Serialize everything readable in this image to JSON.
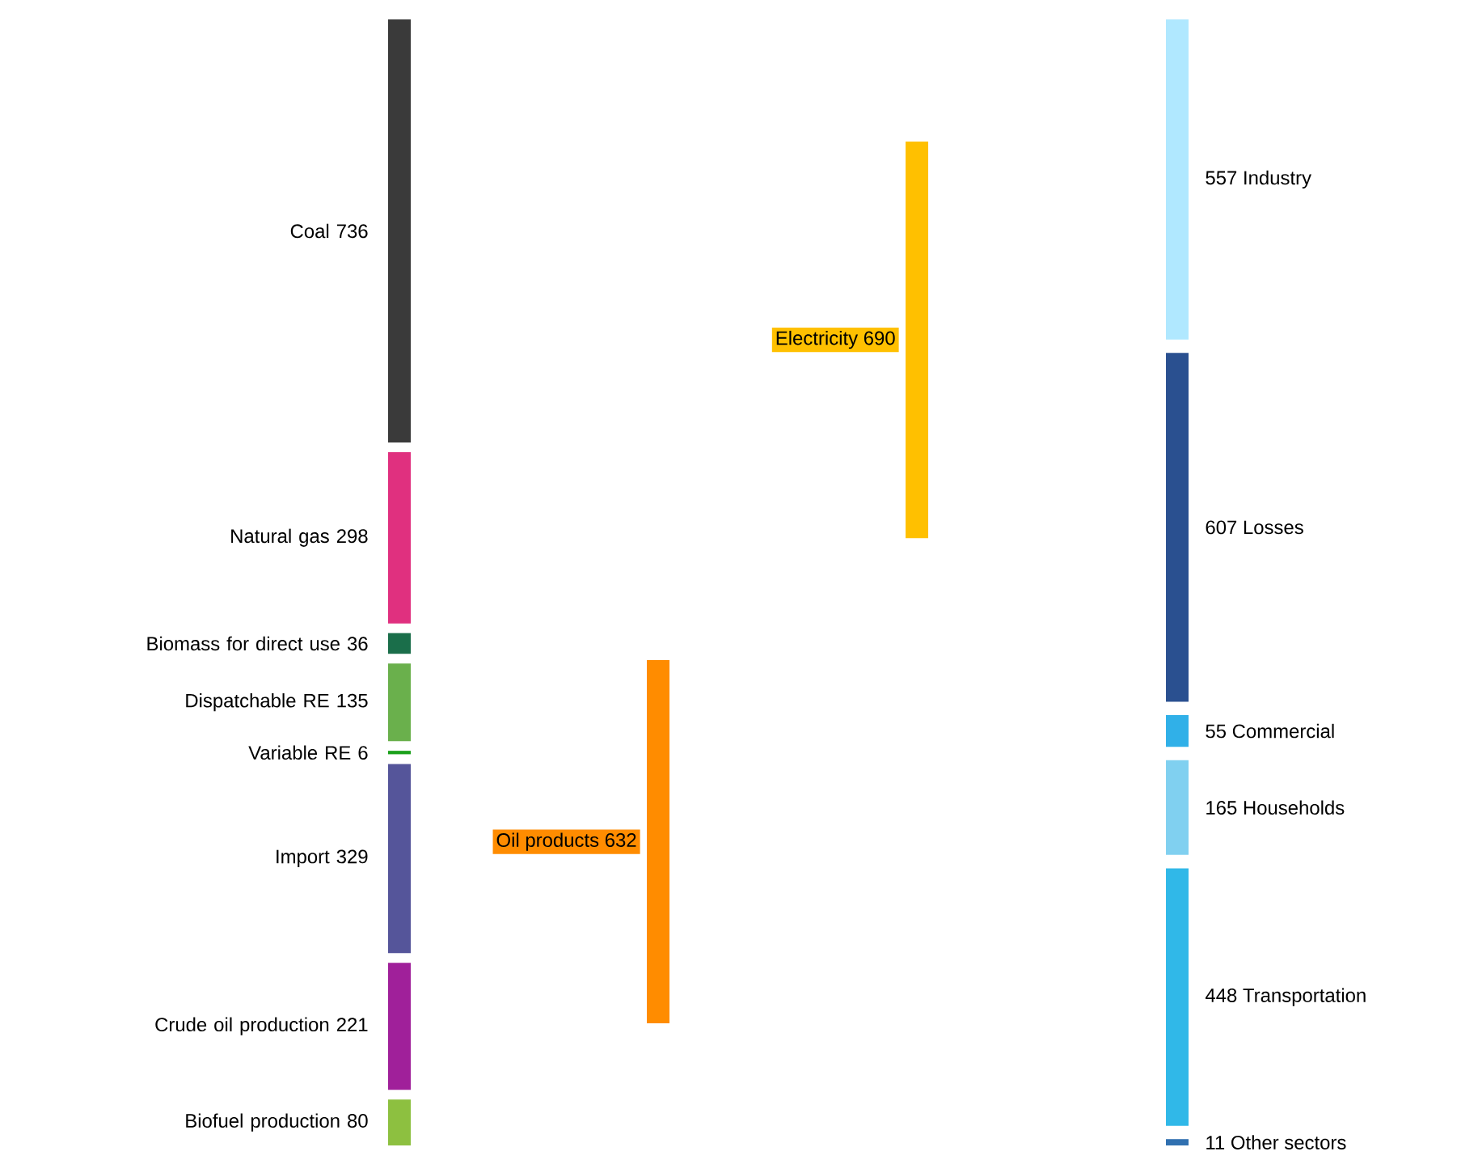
{
  "chart_data": {
    "type": "other",
    "data_labels": true,
    "categories": [
      "Coal",
      "Natural gas",
      "Biomass for direct use",
      "Dispatchable RE",
      "Variable RE",
      "Import",
      "Crude oil production",
      "Biofuel production",
      "Electricity",
      "Oil products",
      "Industry",
      "Losses",
      "Commercial",
      "Households",
      "Transportation",
      "Other sectors"
    ],
    "series": [
      {
        "values": [
          736,
          298,
          36,
          135,
          6,
          329,
          221,
          80,
          null,
          null,
          null,
          null,
          null,
          null,
          null,
          null
        ],
        "colors": [
          "#3a3a3a",
          "#e0307f",
          "#1a6e4a",
          "#6ab04c",
          "#1aa01a",
          "#55559a",
          "#a0209a",
          "#8dc040",
          null,
          null,
          null,
          null,
          null,
          null,
          null,
          null
        ]
      },
      {
        "values": [
          null,
          null,
          null,
          null,
          null,
          null,
          null,
          null,
          690,
          632,
          null,
          null,
          null,
          null,
          null,
          null
        ],
        "colors": [
          null,
          null,
          null,
          null,
          null,
          null,
          null,
          null,
          "#ffc000",
          "#ff8c00",
          null,
          null,
          null,
          null,
          null,
          null
        ]
      },
      {
        "values": [
          null,
          null,
          null,
          null,
          null,
          null,
          null,
          null,
          null,
          null,
          557,
          607,
          55,
          165,
          448,
          11
        ],
        "colors": [
          null,
          null,
          null,
          null,
          null,
          null,
          null,
          null,
          null,
          null,
          "#b0e8ff",
          "#2a5090",
          "#30b0e8",
          "#80d0f0",
          "#30b8e8",
          "#3070b0"
        ]
      }
    ]
  }
}
